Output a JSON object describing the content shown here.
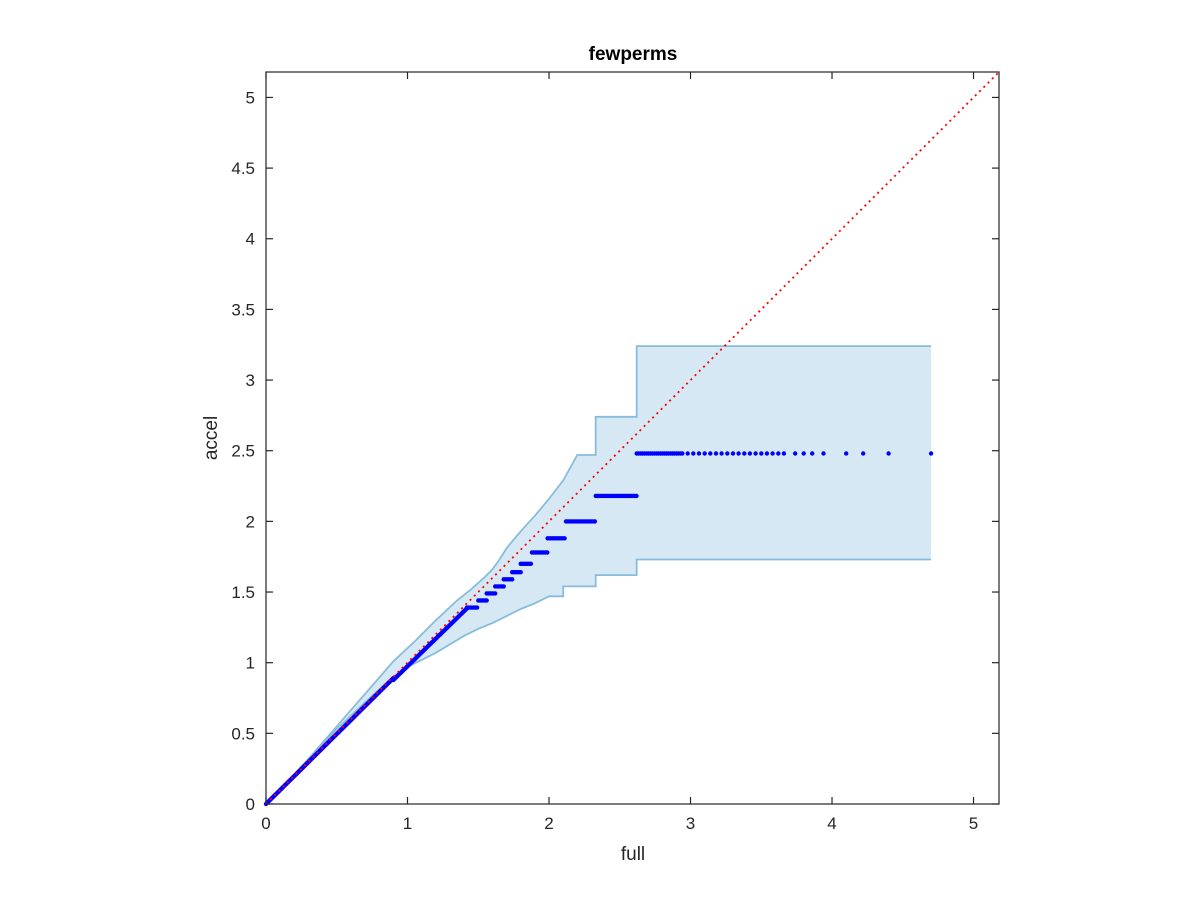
{
  "chart_data": {
    "type": "scatter",
    "title": "fewperms",
    "xlabel": "full",
    "ylabel": "accel",
    "xlim": [
      0,
      5.18
    ],
    "ylim": [
      0,
      5.18
    ],
    "xticks": [
      0,
      1,
      2,
      3,
      4,
      5
    ],
    "yticks": [
      0,
      0.5,
      1,
      1.5,
      2,
      2.5,
      3,
      3.5,
      4,
      4.5,
      5
    ],
    "xtick_labels": [
      "0",
      "1",
      "2",
      "3",
      "4",
      "5"
    ],
    "ytick_labels": [
      "0",
      "0.5",
      "1",
      "1.5",
      "2",
      "2.5",
      "3",
      "3.5",
      "4",
      "4.5",
      "5"
    ],
    "grid": false,
    "reference_line": {
      "style": "dotted",
      "color": "#ff0000",
      "from": [
        0,
        0
      ],
      "to": [
        5.18,
        5.18
      ]
    },
    "band": {
      "color_fill": "#d6e8f4",
      "color_edge": "#88bcdc",
      "upper": [
        [
          0,
          0
        ],
        [
          0.1,
          0.1
        ],
        [
          0.3,
          0.32
        ],
        [
          0.5,
          0.55
        ],
        [
          0.7,
          0.78
        ],
        [
          0.9,
          1.01
        ],
        [
          1.05,
          1.15
        ],
        [
          1.2,
          1.3
        ],
        [
          1.35,
          1.44
        ],
        [
          1.45,
          1.52
        ],
        [
          1.55,
          1.61
        ],
        [
          1.6,
          1.66
        ],
        [
          1.65,
          1.73
        ],
        [
          1.7,
          1.81
        ],
        [
          1.75,
          1.87
        ],
        [
          1.8,
          1.93
        ],
        [
          1.9,
          2.04
        ],
        [
          2.0,
          2.16
        ],
        [
          2.1,
          2.29
        ],
        [
          2.2,
          2.47
        ],
        [
          2.33,
          2.47
        ],
        [
          2.33,
          2.74
        ],
        [
          2.62,
          2.74
        ],
        [
          2.62,
          3.24
        ],
        [
          4.7,
          3.24
        ]
      ],
      "lower": [
        [
          4.7,
          1.73
        ],
        [
          2.62,
          1.73
        ],
        [
          2.62,
          1.62
        ],
        [
          2.33,
          1.62
        ],
        [
          2.33,
          1.54
        ],
        [
          2.1,
          1.54
        ],
        [
          2.1,
          1.47
        ],
        [
          2.0,
          1.47
        ],
        [
          1.9,
          1.42
        ],
        [
          1.8,
          1.38
        ],
        [
          1.7,
          1.33
        ],
        [
          1.6,
          1.28
        ],
        [
          1.5,
          1.24
        ],
        [
          1.4,
          1.19
        ],
        [
          1.3,
          1.13
        ],
        [
          1.2,
          1.07
        ],
        [
          1.1,
          1.02
        ],
        [
          1.0,
          0.97
        ],
        [
          0.9,
          0.9
        ],
        [
          0.7,
          0.72
        ],
        [
          0.5,
          0.53
        ],
        [
          0.3,
          0.32
        ],
        [
          0.1,
          0.1
        ],
        [
          0,
          0
        ]
      ]
    },
    "series": [
      {
        "marker": "dot",
        "color": "#0000ff",
        "segments": [
          {
            "kind": "diagonal",
            "x0": 0,
            "x1": 0.9,
            "slope": 0.99,
            "step": 0.006
          },
          {
            "kind": "diagonal",
            "x0": 0.9,
            "x1": 1.42,
            "slope": 0.975,
            "step": 0.008
          },
          {
            "kind": "plateau",
            "y": 1.39,
            "x0": 1.42,
            "x1": 1.5,
            "step": 0.012
          },
          {
            "kind": "plateau",
            "y": 1.44,
            "x0": 1.5,
            "x1": 1.56,
            "step": 0.012
          },
          {
            "kind": "plateau",
            "y": 1.49,
            "x0": 1.56,
            "x1": 1.62,
            "step": 0.012
          },
          {
            "kind": "plateau",
            "y": 1.54,
            "x0": 1.62,
            "x1": 1.68,
            "step": 0.012
          },
          {
            "kind": "plateau",
            "y": 1.59,
            "x0": 1.68,
            "x1": 1.74,
            "step": 0.012
          },
          {
            "kind": "plateau",
            "y": 1.64,
            "x0": 1.74,
            "x1": 1.8,
            "step": 0.012
          },
          {
            "kind": "plateau",
            "y": 1.7,
            "x0": 1.8,
            "x1": 1.88,
            "step": 0.012
          },
          {
            "kind": "plateau",
            "y": 1.78,
            "x0": 1.88,
            "x1": 1.99,
            "step": 0.012
          },
          {
            "kind": "plateau",
            "y": 1.88,
            "x0": 1.99,
            "x1": 2.12,
            "step": 0.012
          },
          {
            "kind": "plateau",
            "y": 2.0,
            "x0": 2.12,
            "x1": 2.33,
            "step": 0.012
          },
          {
            "kind": "plateau",
            "y": 2.18,
            "x0": 2.33,
            "x1": 2.62,
            "step": 0.012
          },
          {
            "kind": "plateau",
            "y": 2.48,
            "x0": 2.62,
            "x1": 2.95,
            "step": 0.014
          }
        ],
        "points": [
          [
            2.98,
            2.48
          ],
          [
            3.02,
            2.48
          ],
          [
            3.06,
            2.48
          ],
          [
            3.1,
            2.48
          ],
          [
            3.14,
            2.48
          ],
          [
            3.18,
            2.48
          ],
          [
            3.22,
            2.48
          ],
          [
            3.26,
            2.48
          ],
          [
            3.3,
            2.48
          ],
          [
            3.34,
            2.48
          ],
          [
            3.38,
            2.48
          ],
          [
            3.42,
            2.48
          ],
          [
            3.46,
            2.48
          ],
          [
            3.5,
            2.48
          ],
          [
            3.54,
            2.48
          ],
          [
            3.58,
            2.48
          ],
          [
            3.62,
            2.48
          ],
          [
            3.66,
            2.48
          ],
          [
            3.74,
            2.48
          ],
          [
            3.8,
            2.48
          ],
          [
            3.86,
            2.48
          ],
          [
            3.94,
            2.48
          ],
          [
            4.1,
            2.48
          ],
          [
            4.22,
            2.48
          ],
          [
            4.4,
            2.48
          ],
          [
            4.7,
            2.48
          ]
        ]
      }
    ]
  }
}
